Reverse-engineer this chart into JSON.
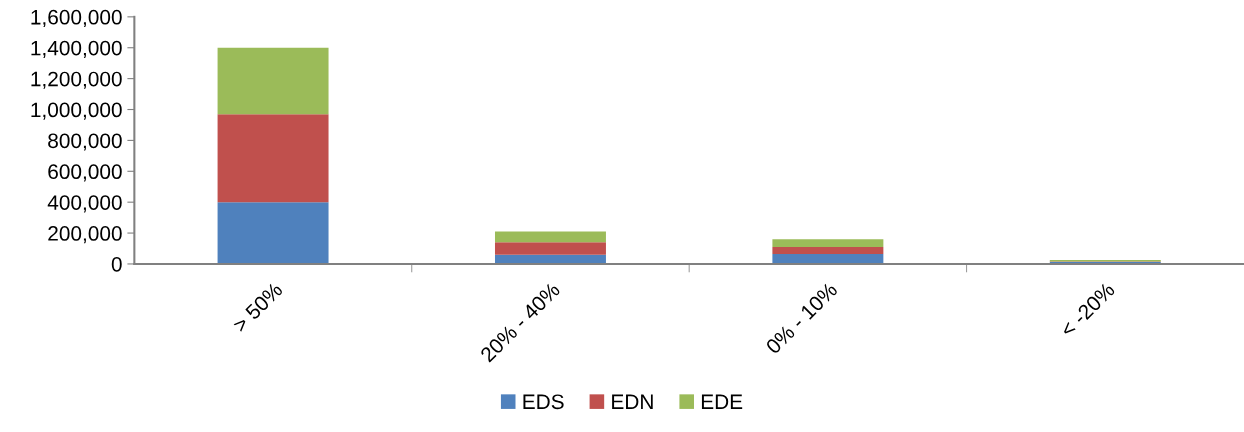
{
  "chart_data": {
    "type": "bar",
    "stacked": true,
    "categories": [
      "> 50%",
      "20% - 40%",
      "0% - 10%",
      "< -20%"
    ],
    "series": [
      {
        "name": "EDS",
        "color": "#4f81bd",
        "values": [
          400000,
          60000,
          65000,
          13000
        ]
      },
      {
        "name": "EDN",
        "color": "#c0504d",
        "values": [
          570000,
          80000,
          45000,
          3000
        ]
      },
      {
        "name": "EDE",
        "color": "#9bbb59",
        "values": [
          430000,
          70000,
          50000,
          9000
        ]
      }
    ],
    "ylim": [
      0,
      1600000
    ],
    "yticks": [
      {
        "value": 0,
        "label": "0"
      },
      {
        "value": 200000,
        "label": "200,000"
      },
      {
        "value": 400000,
        "label": "400,000"
      },
      {
        "value": 600000,
        "label": "600,000"
      },
      {
        "value": 800000,
        "label": "800,000"
      },
      {
        "value": 1000000,
        "label": "1,000,000"
      },
      {
        "value": 1200000,
        "label": "1,200,000"
      },
      {
        "value": 1400000,
        "label": "1,400,000"
      },
      {
        "value": 1600000,
        "label": "1,600,000"
      }
    ],
    "grid": false,
    "legend": "bottom"
  }
}
